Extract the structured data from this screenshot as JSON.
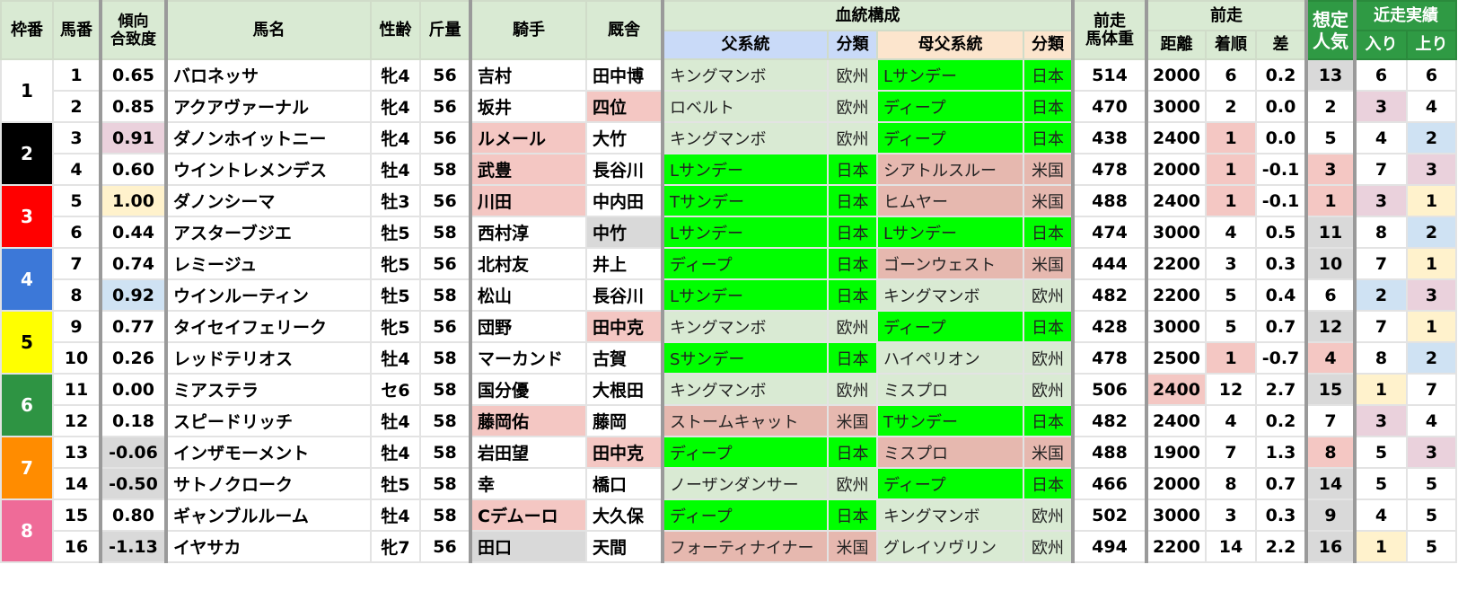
{
  "colors": {
    "header": "#d9ead3",
    "header_dark": "#2f9a44",
    "pink": "#f4c7c3",
    "mauve": "#ead1dc",
    "yellow": "#fff2cc",
    "blue": "#cfe2f3",
    "gray": "#d9d9d9",
    "japan_green": "#00ff00",
    "usa_brown": "#e6b8af",
    "europe_green": "#d9ead3"
  },
  "headers": {
    "waku": "枠番",
    "umaban": "馬番",
    "score": "傾向\n合致度",
    "name": "馬名",
    "sexage": "性齢",
    "weight": "斤量",
    "jockey": "騎手",
    "trainer": "厩舎",
    "pedigree": "血統構成",
    "sire": "父系統",
    "sire_cls": "分類",
    "damsire": "母父系統",
    "damsire_cls": "分類",
    "body": "前走\n馬体重",
    "prev": "前走",
    "dist": "距離",
    "rank": "着順",
    "diff": "差",
    "pop": "想定\n人気",
    "recent": "近走実績",
    "entry": "入り",
    "up": "上り"
  },
  "waku": [
    {
      "label": "1",
      "bg": "#ffffff",
      "fg": "#000000"
    },
    {
      "label": "2",
      "bg": "#000000",
      "fg": "#ffffff"
    },
    {
      "label": "3",
      "bg": "#ff0000",
      "fg": "#ffffff"
    },
    {
      "label": "4",
      "bg": "#3c78d8",
      "fg": "#ffffff"
    },
    {
      "label": "5",
      "bg": "#ffff00",
      "fg": "#000000"
    },
    {
      "label": "6",
      "bg": "#2e9443",
      "fg": "#ffffff"
    },
    {
      "label": "7",
      "bg": "#ff8c00",
      "fg": "#ffffff"
    },
    {
      "label": "8",
      "bg": "#ef6b98",
      "fg": "#ffffff"
    }
  ],
  "rows": [
    {
      "num": "1",
      "score": "0.65",
      "name": "バロネッサ",
      "sexage": "牝4",
      "weight": "56",
      "jockey": "吉村",
      "trainer": "田中博",
      "sire": "キングマンボ",
      "sire_cls": "欧州",
      "damsire": "Lサンデー",
      "damsire_cls": "日本",
      "body": "514",
      "dist": "2000",
      "rank": "6",
      "diff": "0.2",
      "pop": "13",
      "entry": "6",
      "up": "6",
      "hl": {
        "pop": "gray"
      }
    },
    {
      "num": "2",
      "score": "0.85",
      "name": "アクアヴァーナル",
      "sexage": "牝4",
      "weight": "56",
      "jockey": "坂井",
      "trainer": "四位",
      "sire": "ロベルト",
      "sire_cls": "欧州",
      "damsire": "ディープ",
      "damsire_cls": "日本",
      "body": "470",
      "dist": "3000",
      "rank": "2",
      "diff": "0.0",
      "pop": "2",
      "entry": "3",
      "up": "4",
      "hl": {
        "trainer": "pink",
        "entry": "mauve"
      }
    },
    {
      "num": "3",
      "score": "0.91",
      "name": "ダノンホイットニー",
      "sexage": "牝4",
      "weight": "56",
      "jockey": "ルメール",
      "trainer": "大竹",
      "sire": "キングマンボ",
      "sire_cls": "欧州",
      "damsire": "ディープ",
      "damsire_cls": "日本",
      "body": "438",
      "dist": "2400",
      "rank": "1",
      "diff": "0.0",
      "pop": "5",
      "entry": "4",
      "up": "2",
      "hl": {
        "score": "mauve",
        "jockey": "pink",
        "rank": "pink",
        "up": "blue"
      }
    },
    {
      "num": "4",
      "score": "0.60",
      "name": "ウイントレメンデス",
      "sexage": "牡4",
      "weight": "58",
      "jockey": "武豊",
      "trainer": "長谷川",
      "sire": "Lサンデー",
      "sire_cls": "日本",
      "damsire": "シアトルスルー",
      "damsire_cls": "米国",
      "body": "478",
      "dist": "2000",
      "rank": "1",
      "diff": "-0.1",
      "pop": "3",
      "entry": "7",
      "up": "3",
      "hl": {
        "jockey": "pink",
        "rank": "pink",
        "pop": "pink",
        "up": "mauve"
      }
    },
    {
      "num": "5",
      "score": "1.00",
      "name": "ダノンシーマ",
      "sexage": "牡3",
      "weight": "56",
      "jockey": "川田",
      "trainer": "中内田",
      "sire": "Tサンデー",
      "sire_cls": "日本",
      "damsire": "ヒムヤー",
      "damsire_cls": "米国",
      "body": "488",
      "dist": "2400",
      "rank": "1",
      "diff": "-0.1",
      "pop": "1",
      "entry": "3",
      "up": "1",
      "hl": {
        "score": "yellow",
        "jockey": "pink",
        "rank": "pink",
        "pop": "pink",
        "entry": "mauve",
        "up": "yellow"
      }
    },
    {
      "num": "6",
      "score": "0.44",
      "name": "アスターブジエ",
      "sexage": "牡5",
      "weight": "58",
      "jockey": "西村淳",
      "trainer": "中竹",
      "sire": "Lサンデー",
      "sire_cls": "日本",
      "damsire": "Lサンデー",
      "damsire_cls": "日本",
      "body": "474",
      "dist": "3000",
      "rank": "4",
      "diff": "0.5",
      "pop": "11",
      "entry": "8",
      "up": "2",
      "hl": {
        "trainer": "gray",
        "pop": "gray",
        "up": "blue"
      }
    },
    {
      "num": "7",
      "score": "0.74",
      "name": "レミージュ",
      "sexage": "牝5",
      "weight": "56",
      "jockey": "北村友",
      "trainer": "井上",
      "sire": "ディープ",
      "sire_cls": "日本",
      "damsire": "ゴーンウェスト",
      "damsire_cls": "米国",
      "body": "444",
      "dist": "2200",
      "rank": "3",
      "diff": "0.3",
      "pop": "10",
      "entry": "7",
      "up": "1",
      "hl": {
        "pop": "gray",
        "up": "yellow"
      }
    },
    {
      "num": "8",
      "score": "0.92",
      "name": "ウインルーティン",
      "sexage": "牡5",
      "weight": "58",
      "jockey": "松山",
      "trainer": "長谷川",
      "sire": "Lサンデー",
      "sire_cls": "日本",
      "damsire": "キングマンボ",
      "damsire_cls": "欧州",
      "body": "482",
      "dist": "2200",
      "rank": "5",
      "diff": "0.4",
      "pop": "6",
      "entry": "2",
      "up": "3",
      "hl": {
        "score": "blue",
        "entry": "blue",
        "up": "mauve"
      }
    },
    {
      "num": "9",
      "score": "0.77",
      "name": "タイセイフェリーク",
      "sexage": "牝5",
      "weight": "56",
      "jockey": "団野",
      "trainer": "田中克",
      "sire": "キングマンボ",
      "sire_cls": "欧州",
      "damsire": "ディープ",
      "damsire_cls": "日本",
      "body": "428",
      "dist": "3000",
      "rank": "5",
      "diff": "0.7",
      "pop": "12",
      "entry": "7",
      "up": "1",
      "hl": {
        "trainer": "pink",
        "pop": "gray",
        "up": "yellow"
      }
    },
    {
      "num": "10",
      "score": "0.26",
      "name": "レッドテリオス",
      "sexage": "牡4",
      "weight": "58",
      "jockey": "マーカンド",
      "trainer": "古賀",
      "sire": "Sサンデー",
      "sire_cls": "日本",
      "damsire": "ハイペリオン",
      "damsire_cls": "欧州",
      "body": "478",
      "dist": "2500",
      "rank": "1",
      "diff": "-0.7",
      "pop": "4",
      "entry": "8",
      "up": "2",
      "hl": {
        "rank": "pink",
        "pop": "pink",
        "up": "blue"
      }
    },
    {
      "num": "11",
      "score": "0.00",
      "name": "ミアステラ",
      "sexage": "セ6",
      "weight": "58",
      "jockey": "国分優",
      "trainer": "大根田",
      "sire": "キングマンボ",
      "sire_cls": "欧州",
      "damsire": "ミスプロ",
      "damsire_cls": "欧州",
      "body": "506",
      "dist": "2400",
      "rank": "12",
      "diff": "2.7",
      "pop": "15",
      "entry": "1",
      "up": "7",
      "hl": {
        "dist": "pink",
        "pop": "gray",
        "entry": "yellow"
      }
    },
    {
      "num": "12",
      "score": "0.18",
      "name": "スピードリッチ",
      "sexage": "牡4",
      "weight": "58",
      "jockey": "藤岡佑",
      "trainer": "藤岡",
      "sire": "ストームキャット",
      "sire_cls": "米国",
      "damsire": "Tサンデー",
      "damsire_cls": "日本",
      "body": "482",
      "dist": "2400",
      "rank": "4",
      "diff": "0.2",
      "pop": "7",
      "entry": "3",
      "up": "4",
      "hl": {
        "jockey": "pink",
        "entry": "mauve"
      }
    },
    {
      "num": "13",
      "score": "-0.06",
      "name": "インザモーメント",
      "sexage": "牡4",
      "weight": "58",
      "jockey": "岩田望",
      "trainer": "田中克",
      "sire": "ディープ",
      "sire_cls": "日本",
      "damsire": "ミスプロ",
      "damsire_cls": "米国",
      "body": "488",
      "dist": "1900",
      "rank": "7",
      "diff": "1.3",
      "pop": "8",
      "entry": "5",
      "up": "3",
      "hl": {
        "score": "gray",
        "trainer": "pink",
        "pop": "pink",
        "up": "mauve"
      }
    },
    {
      "num": "14",
      "score": "-0.50",
      "name": "サトノクローク",
      "sexage": "牡5",
      "weight": "58",
      "jockey": "幸",
      "trainer": "橋口",
      "sire": "ノーザンダンサー",
      "sire_cls": "欧州",
      "damsire": "ディープ",
      "damsire_cls": "日本",
      "body": "466",
      "dist": "2000",
      "rank": "8",
      "diff": "0.7",
      "pop": "14",
      "entry": "5",
      "up": "5",
      "hl": {
        "score": "gray",
        "pop": "gray"
      }
    },
    {
      "num": "15",
      "score": "0.80",
      "name": "ギャンブルルーム",
      "sexage": "牡4",
      "weight": "58",
      "jockey": "Cデムーロ",
      "trainer": "大久保",
      "sire": "ディープ",
      "sire_cls": "日本",
      "damsire": "キングマンボ",
      "damsire_cls": "欧州",
      "body": "502",
      "dist": "3000",
      "rank": "3",
      "diff": "0.3",
      "pop": "9",
      "entry": "4",
      "up": "5",
      "hl": {
        "jockey": "pink",
        "pop": "gray"
      }
    },
    {
      "num": "16",
      "score": "-1.13",
      "name": "イヤサカ",
      "sexage": "牝7",
      "weight": "56",
      "jockey": "田口",
      "trainer": "天間",
      "sire": "フォーティナイナー",
      "sire_cls": "米国",
      "damsire": "グレイソヴリン",
      "damsire_cls": "欧州",
      "body": "494",
      "dist": "2200",
      "rank": "14",
      "diff": "2.2",
      "pop": "16",
      "entry": "1",
      "up": "5",
      "hl": {
        "score": "gray",
        "jockey": "gray",
        "pop": "gray",
        "entry": "yellow"
      }
    }
  ]
}
